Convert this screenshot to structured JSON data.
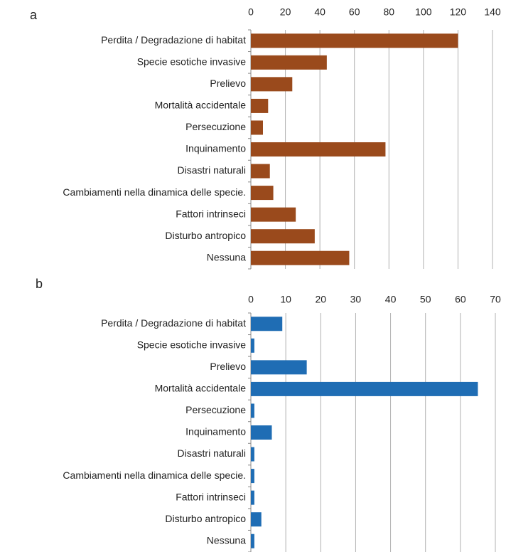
{
  "chart_data": [
    {
      "type": "bar",
      "orientation": "horizontal",
      "title": "a",
      "categories": [
        "Perdita / Degradazione di habitat",
        "Specie esotiche invasive",
        "Prelievo",
        "Mortalità accidentale",
        "Persecuzione",
        "Inquinamento",
        "Disastri naturali",
        "Cambiamenti nella dinamica delle specie.",
        "Fattori intrinseci",
        "Disturbo antropico",
        "Nessuna"
      ],
      "values": [
        120,
        44,
        24,
        10,
        7,
        78,
        11,
        13,
        26,
        37,
        57
      ],
      "color": "#9a4a1c",
      "xlim": [
        0,
        140
      ],
      "xticks": [
        0,
        20,
        40,
        60,
        80,
        100,
        120,
        140
      ],
      "grid": true
    },
    {
      "type": "bar",
      "orientation": "horizontal",
      "title": "b",
      "categories": [
        "Perdita / Degradazione di habitat",
        "Specie esotiche invasive",
        "Prelievo",
        "Mortalità accidentale",
        "Persecuzione",
        "Inquinamento",
        "Disastri naturali",
        "Cambiamenti nella dinamica delle specie.",
        "Fattori intrinseci",
        "Disturbo antropico",
        "Nessuna"
      ],
      "values": [
        9,
        1,
        16,
        65,
        1,
        6,
        1,
        1,
        1,
        3,
        1
      ],
      "color": "#1f6db4",
      "xlim": [
        0,
        70
      ],
      "xticks": [
        0,
        10,
        20,
        30,
        40,
        50,
        60,
        70
      ],
      "grid": true
    }
  ]
}
